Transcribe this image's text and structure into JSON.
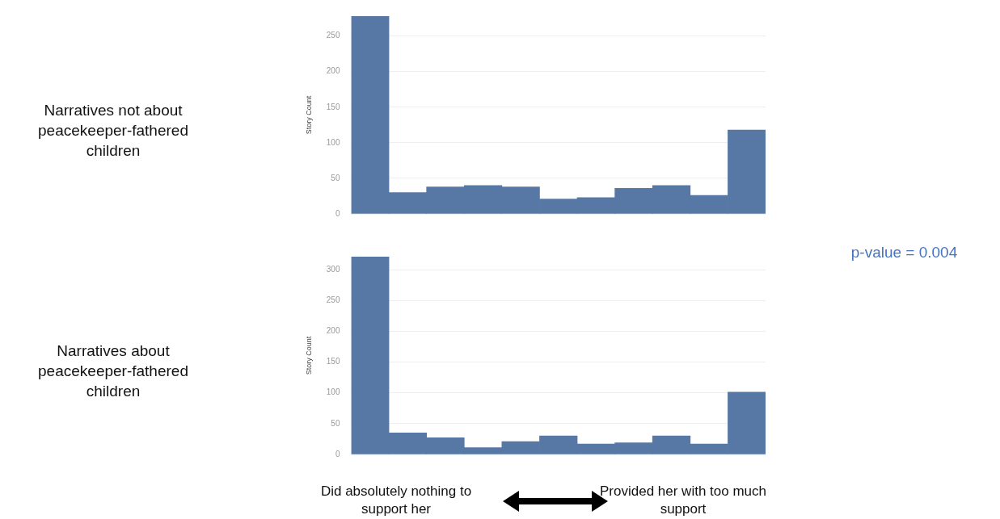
{
  "chart_data": [
    {
      "type": "bar",
      "ylabel": "Story Count",
      "categories": [
        null,
        null,
        null,
        null,
        null,
        null,
        null,
        null,
        null,
        null,
        null
      ],
      "values": [
        278,
        30,
        38,
        40,
        38,
        21,
        23,
        36,
        40,
        26,
        118
      ],
      "color": "#5778a4",
      "ylim": [
        0,
        278
      ],
      "yticks": [
        0,
        50,
        100,
        150,
        200,
        250
      ],
      "grid": "y",
      "tick_labels": "y",
      "annotations": [
        "Narratives not about peacekeeper-fathered children",
        "p-value = 0.004"
      ]
    },
    {
      "type": "bar",
      "ylabel": "Story Count",
      "categories": [
        null,
        null,
        null,
        null,
        null,
        null,
        null,
        null,
        null,
        null,
        null
      ],
      "values": [
        321,
        35,
        27,
        11,
        21,
        30,
        17,
        19,
        30,
        17,
        101
      ],
      "color": "#5778a4",
      "ylim": [
        0,
        321
      ],
      "yticks": [
        0,
        50,
        100,
        150,
        200,
        250,
        300
      ],
      "grid": "y",
      "tick_labels": "y",
      "annotations": [
        "Narratives about peacekeeper-fathered children",
        "Did absolutely nothing to support her",
        "Provided her with too much support"
      ]
    }
  ]
}
